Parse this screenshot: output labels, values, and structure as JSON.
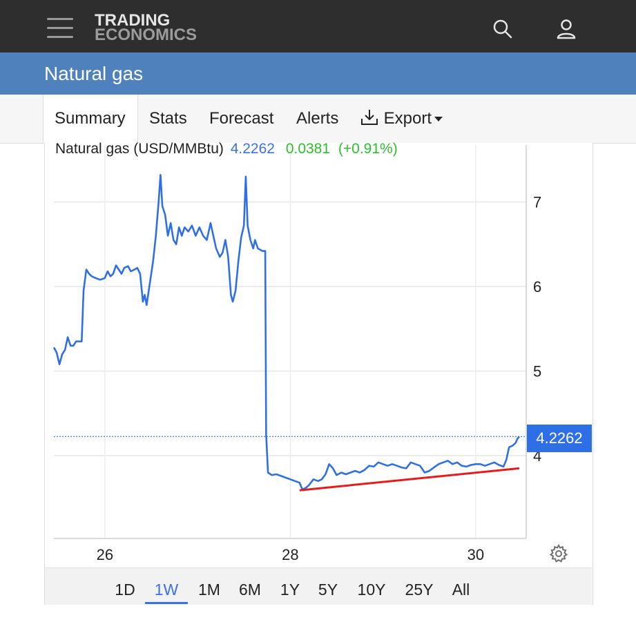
{
  "brand": {
    "line1": "TRADING",
    "line2": "ECONOMICS"
  },
  "header": {
    "title": "Natural gas"
  },
  "tabs": [
    {
      "label": "Summary",
      "active": true
    },
    {
      "label": "Stats"
    },
    {
      "label": "Forecast"
    },
    {
      "label": "Alerts"
    },
    {
      "label": "Export"
    }
  ],
  "legend": {
    "name": "Natural gas (USD/MMBtu)",
    "price": "4.2262",
    "change": "0.0381",
    "change_pct": "(+0.91%)"
  },
  "price_tag": "4.2262",
  "ranges": [
    {
      "label": "1D"
    },
    {
      "label": "1W",
      "active": true
    },
    {
      "label": "1M"
    },
    {
      "label": "6M"
    },
    {
      "label": "1Y"
    },
    {
      "label": "5Y"
    },
    {
      "label": "10Y"
    },
    {
      "label": "25Y"
    },
    {
      "label": "All"
    }
  ],
  "colors": {
    "topbar": "#2e2e2e",
    "titlebar": "#4f81bd",
    "series": "#2f6fe6",
    "trendline": "#e81b1b",
    "positive": "#2cbf2c"
  },
  "chart_data": {
    "type": "line",
    "x_ticks": [
      "26",
      "28",
      "30"
    ],
    "y_ticks": [
      "4",
      "5",
      "6",
      "7"
    ],
    "ylim": [
      3.0,
      7.5
    ],
    "x_range": [
      25.45,
      30.5
    ],
    "last_value": 4.2262,
    "reference_line": 4.2262,
    "grid": true,
    "series": [
      {
        "points": [
          [
            25.45,
            5.28
          ],
          [
            25.48,
            5.22
          ],
          [
            25.51,
            5.08
          ],
          [
            25.54,
            5.2
          ],
          [
            25.57,
            5.25
          ],
          [
            25.6,
            5.4
          ],
          [
            25.63,
            5.3
          ],
          [
            25.66,
            5.3
          ],
          [
            25.69,
            5.35
          ],
          [
            25.72,
            5.35
          ],
          [
            25.75,
            5.35
          ],
          [
            25.77,
            5.95
          ],
          [
            25.8,
            6.2
          ],
          [
            25.83,
            6.15
          ],
          [
            25.86,
            6.12
          ],
          [
            25.9,
            6.1
          ],
          [
            25.95,
            6.08
          ],
          [
            26.0,
            6.1
          ],
          [
            26.03,
            6.18
          ],
          [
            26.06,
            6.12
          ],
          [
            26.09,
            6.15
          ],
          [
            26.12,
            6.25
          ],
          [
            26.15,
            6.2
          ],
          [
            26.18,
            6.15
          ],
          [
            26.21,
            6.22
          ],
          [
            26.25,
            6.24
          ],
          [
            26.28,
            6.18
          ],
          [
            26.32,
            6.2
          ],
          [
            26.35,
            6.22
          ],
          [
            26.38,
            6.15
          ],
          [
            26.41,
            5.82
          ],
          [
            26.43,
            5.9
          ],
          [
            26.45,
            5.78
          ],
          [
            26.48,
            6.0
          ],
          [
            26.52,
            6.3
          ],
          [
            26.55,
            6.6
          ],
          [
            26.58,
            7.0
          ],
          [
            26.6,
            7.32
          ],
          [
            26.62,
            6.95
          ],
          [
            26.65,
            6.85
          ],
          [
            26.68,
            6.6
          ],
          [
            26.71,
            6.75
          ],
          [
            26.74,
            6.55
          ],
          [
            26.77,
            6.5
          ],
          [
            26.8,
            6.7
          ],
          [
            26.83,
            6.6
          ],
          [
            26.86,
            6.7
          ],
          [
            26.9,
            6.65
          ],
          [
            26.94,
            6.72
          ],
          [
            26.98,
            6.6
          ],
          [
            27.02,
            6.7
          ],
          [
            27.06,
            6.6
          ],
          [
            27.1,
            6.55
          ],
          [
            27.14,
            6.75
          ],
          [
            27.17,
            6.6
          ],
          [
            27.2,
            6.45
          ],
          [
            27.24,
            6.35
          ],
          [
            27.27,
            6.4
          ],
          [
            27.3,
            6.55
          ],
          [
            27.33,
            6.35
          ],
          [
            27.36,
            5.9
          ],
          [
            27.38,
            5.82
          ],
          [
            27.41,
            5.95
          ],
          [
            27.44,
            6.3
          ],
          [
            27.47,
            6.58
          ],
          [
            27.5,
            6.72
          ],
          [
            27.52,
            7.3
          ],
          [
            27.54,
            6.72
          ],
          [
            27.57,
            6.55
          ],
          [
            27.6,
            6.45
          ],
          [
            27.62,
            6.55
          ],
          [
            27.65,
            6.45
          ],
          [
            27.7,
            6.42
          ],
          [
            27.73,
            6.42
          ],
          [
            27.74,
            4.25
          ],
          [
            27.76,
            3.8
          ],
          [
            27.8,
            3.77
          ],
          [
            27.85,
            3.78
          ],
          [
            27.9,
            3.76
          ],
          [
            27.95,
            3.74
          ],
          [
            28.0,
            3.72
          ],
          [
            28.05,
            3.7
          ],
          [
            28.1,
            3.68
          ],
          [
            28.13,
            3.6
          ],
          [
            28.17,
            3.62
          ],
          [
            28.2,
            3.65
          ],
          [
            28.25,
            3.72
          ],
          [
            28.3,
            3.7
          ],
          [
            28.34,
            3.72
          ],
          [
            28.38,
            3.78
          ],
          [
            28.42,
            3.9
          ],
          [
            28.46,
            3.85
          ],
          [
            28.5,
            3.77
          ],
          [
            28.55,
            3.8
          ],
          [
            28.6,
            3.78
          ],
          [
            28.65,
            3.8
          ],
          [
            28.7,
            3.82
          ],
          [
            28.75,
            3.8
          ],
          [
            28.8,
            3.83
          ],
          [
            28.85,
            3.88
          ],
          [
            28.9,
            3.87
          ],
          [
            28.95,
            3.92
          ],
          [
            29.0,
            3.9
          ],
          [
            29.05,
            3.88
          ],
          [
            29.1,
            3.9
          ],
          [
            29.15,
            3.88
          ],
          [
            29.2,
            3.86
          ],
          [
            29.25,
            3.85
          ],
          [
            29.3,
            3.92
          ],
          [
            29.35,
            3.9
          ],
          [
            29.4,
            3.88
          ],
          [
            29.45,
            3.8
          ],
          [
            29.5,
            3.82
          ],
          [
            29.55,
            3.86
          ],
          [
            29.6,
            3.9
          ],
          [
            29.65,
            3.92
          ],
          [
            29.7,
            3.94
          ],
          [
            29.75,
            3.9
          ],
          [
            29.8,
            3.92
          ],
          [
            29.85,
            3.88
          ],
          [
            29.9,
            3.87
          ],
          [
            29.95,
            3.89
          ],
          [
            30.0,
            3.9
          ],
          [
            30.05,
            3.9
          ],
          [
            30.1,
            3.88
          ],
          [
            30.15,
            3.9
          ],
          [
            30.2,
            3.92
          ],
          [
            30.25,
            3.89
          ],
          [
            30.3,
            3.87
          ],
          [
            30.33,
            3.95
          ],
          [
            30.36,
            4.1
          ],
          [
            30.4,
            4.12
          ],
          [
            30.43,
            4.15
          ],
          [
            30.45,
            4.2
          ],
          [
            30.47,
            4.2262
          ]
        ]
      }
    ],
    "trendline": {
      "from": [
        28.1,
        3.59
      ],
      "to": [
        30.47,
        3.85
      ]
    }
  }
}
